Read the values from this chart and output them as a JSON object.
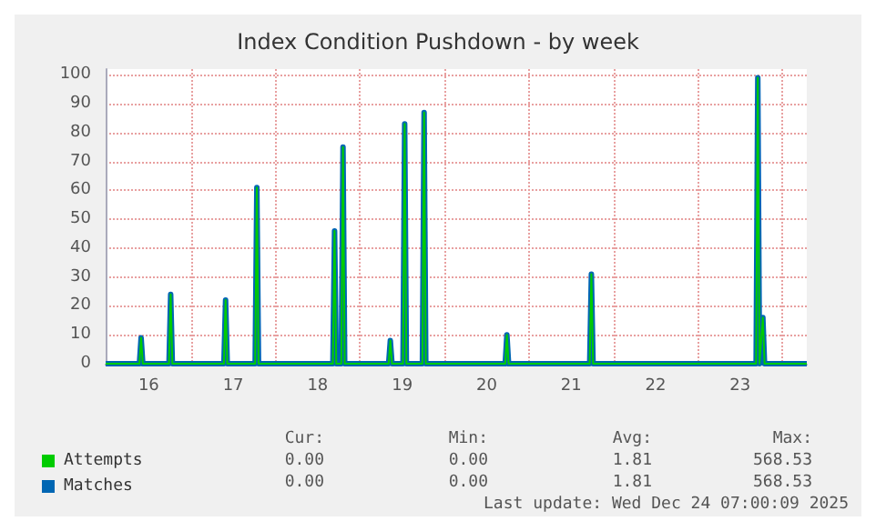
{
  "chart_data": {
    "type": "line",
    "title": "Index Condition Pushdown - by week",
    "xlim": [
      15.99,
      24.29
    ],
    "ylim": [
      0,
      102
    ],
    "xticks": [
      {
        "value": 16,
        "label": null
      },
      {
        "value": 16.5,
        "label": "16"
      },
      {
        "value": 17,
        "label": null
      },
      {
        "value": 17.5,
        "label": "17"
      },
      {
        "value": 18,
        "label": null
      },
      {
        "value": 18.5,
        "label": "18"
      },
      {
        "value": 19,
        "label": null
      },
      {
        "value": 19.5,
        "label": "19"
      },
      {
        "value": 20,
        "label": null
      },
      {
        "value": 20.5,
        "label": "20"
      },
      {
        "value": 21,
        "label": null
      },
      {
        "value": 21.5,
        "label": "21"
      },
      {
        "value": 22,
        "label": null
      },
      {
        "value": 22.5,
        "label": "22"
      },
      {
        "value": 23,
        "label": null
      },
      {
        "value": 23.5,
        "label": "23"
      },
      {
        "value": 24,
        "label": null
      }
    ],
    "yticks": [
      0,
      10,
      20,
      30,
      40,
      50,
      60,
      70,
      80,
      90,
      100
    ],
    "grid": true,
    "legend": "bottom left",
    "marker": "none",
    "line_style": "solid",
    "x": [
      15.99,
      16.39,
      16.41,
      16.43,
      16.74,
      16.76,
      16.78,
      17.39,
      17.41,
      17.43,
      17.76,
      17.78,
      17.8,
      18.68,
      18.7,
      18.72,
      18.78,
      18.8,
      18.82,
      19.34,
      19.36,
      19.38,
      19.51,
      19.53,
      19.55,
      19.74,
      19.76,
      19.78,
      20.72,
      20.74,
      20.76,
      21.72,
      21.74,
      21.76,
      23.69,
      23.71,
      23.73,
      23.77,
      23.79,
      24.29
    ],
    "series": [
      {
        "name": "Matches",
        "color": "#0066b3",
        "values": [
          0,
          0,
          9,
          0,
          0,
          24,
          0,
          0,
          22,
          0,
          0,
          61,
          0,
          0,
          46,
          0,
          0,
          75,
          0,
          0,
          8,
          0,
          0,
          83,
          0,
          0,
          87,
          0,
          0,
          10,
          0,
          0,
          31,
          0,
          0,
          99,
          0,
          16,
          0,
          0
        ]
      },
      {
        "name": "Attempts",
        "color": "#00cc00",
        "values": [
          0,
          0,
          9,
          0,
          0,
          24,
          0,
          0,
          22,
          0,
          0,
          61,
          0,
          0,
          46,
          0,
          0,
          75,
          0,
          0,
          8,
          0,
          0,
          83,
          0,
          0,
          87,
          0,
          0,
          10,
          0,
          0,
          31,
          0,
          0,
          99,
          0,
          16,
          0,
          0
        ]
      }
    ],
    "annotations": [
      "Cur:",
      "Min:",
      "Avg:",
      "Max:",
      "0.00",
      "0.00",
      "1.81",
      "568.53",
      "0.00",
      "0.00",
      "1.81",
      "568.53",
      "Last update: Wed Dec 24 07:00:09 2025"
    ]
  }
}
